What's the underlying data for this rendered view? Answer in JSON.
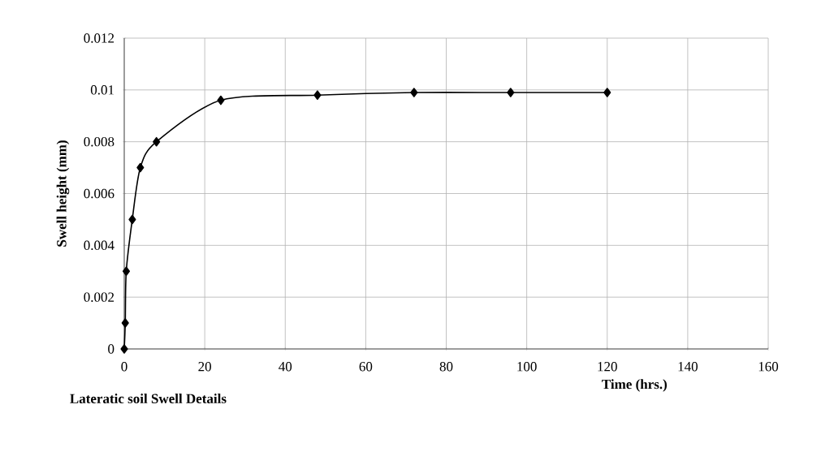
{
  "chart_data": {
    "type": "line",
    "xlabel": "Time (hrs.)",
    "ylabel": "Swell height (mm)",
    "annotations": [
      "Lateratic soil Swell Details"
    ],
    "x": [
      0,
      0.25,
      0.5,
      2,
      4,
      8,
      24,
      48,
      72,
      96,
      120
    ],
    "series": [
      {
        "color": "#000000",
        "values": [
          0,
          0.001,
          0.003,
          0.005,
          0.007,
          0.008,
          0.0096,
          0.0098,
          0.0099,
          0.0099,
          0.0099
        ]
      }
    ],
    "xlim": [
      0,
      160
    ],
    "xticks": [
      0,
      20,
      40,
      60,
      80,
      100,
      120,
      140,
      160
    ],
    "ylim": [
      0,
      0.012
    ],
    "yticks": [
      0,
      0.002,
      0.004,
      0.006,
      0.008,
      0.01,
      0.012
    ],
    "grid": true,
    "marker": "diamond",
    "line_style": "solid"
  }
}
